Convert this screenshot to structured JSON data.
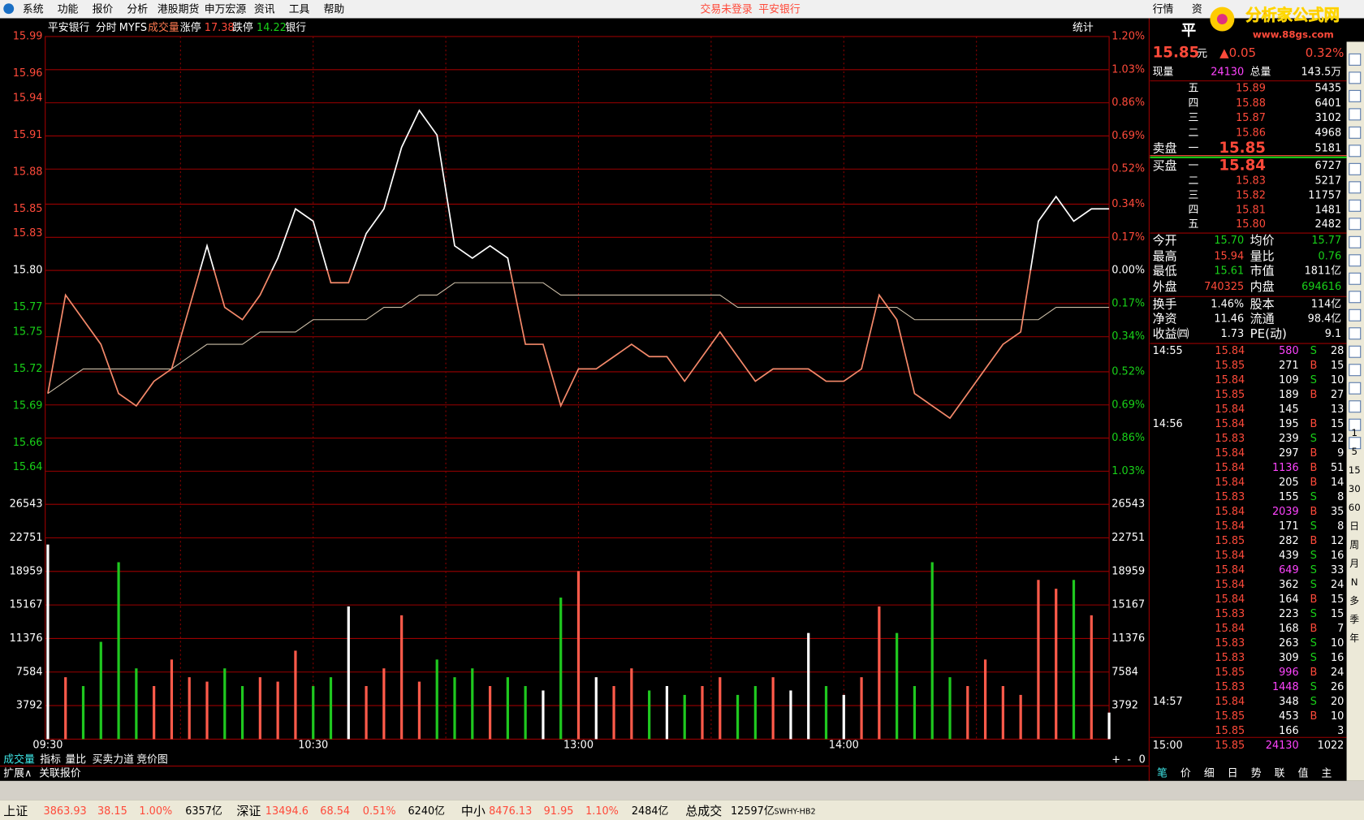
{
  "menu": {
    "items": [
      "系统",
      "功能",
      "报价",
      "分析",
      "港股期货",
      "申万宏源",
      "资讯",
      "工具",
      "帮助"
    ],
    "status": "交易未登录",
    "stock": "平安银行",
    "tabs": [
      "行情",
      "资"
    ]
  },
  "logo": {
    "title": "分析家公式网",
    "url": "www.88gs.com"
  },
  "chart_header": {
    "name": "平安银行",
    "mode": "分时",
    "indicator": "MYFS",
    "volume_label": "成交量",
    "limit_up_label": "涨停",
    "limit_up": "17.38",
    "limit_down_label": "跌停",
    "limit_down": "14.22",
    "sector": "银行",
    "stats_button": "统计"
  },
  "chart_data": [
    {
      "type": "line",
      "x": [
        0,
        4,
        8,
        12,
        16,
        20,
        24,
        28,
        32,
        36,
        40,
        44,
        48,
        52,
        56,
        60,
        64,
        68,
        72,
        76,
        80,
        84,
        88,
        92,
        96,
        100,
        104,
        108,
        112,
        116,
        120,
        124,
        128,
        132,
        136,
        140,
        144,
        148,
        152,
        156,
        160,
        164,
        168,
        172,
        176,
        180,
        184,
        188,
        192,
        196,
        200,
        204,
        208,
        212,
        216,
        220,
        224,
        228,
        232,
        236,
        240
      ],
      "xlim": [
        0,
        240
      ],
      "xticks": [
        {
          "value": 0,
          "label": "09:30"
        },
        {
          "value": 60,
          "label": "10:30"
        },
        {
          "value": 120,
          "label": "13:00"
        },
        {
          "value": 180,
          "label": "14:00"
        }
      ],
      "xgrid": [
        30,
        60,
        90,
        120,
        150,
        180,
        210
      ],
      "ylim": [
        15.61,
        15.99
      ],
      "yticks": [
        15.99,
        15.96,
        15.94,
        15.91,
        15.88,
        15.85,
        15.83,
        {
          "value": 15.8,
          "label": "15.80"
        },
        15.77,
        15.75,
        15.72,
        15.69,
        15.66,
        15.64
      ],
      "y2lim": [
        -1.2,
        1.2
      ],
      "y2ticks": [
        {
          "value": 1.2,
          "label": "1.20%"
        },
        {
          "value": 1.03,
          "label": "1.03%"
        },
        {
          "value": 0.86,
          "label": "0.86%"
        },
        {
          "value": 0.69,
          "label": "0.69%"
        },
        {
          "value": 0.52,
          "label": "0.52%"
        },
        {
          "value": 0.34,
          "label": "0.34%"
        },
        {
          "value": 0.17,
          "label": "0.17%"
        },
        {
          "value": 0,
          "label": "0.00%"
        },
        {
          "value": -0.17,
          "label": "0.17%"
        },
        {
          "value": -0.34,
          "label": "0.34%"
        },
        {
          "value": -0.52,
          "label": "0.52%"
        },
        {
          "value": -0.69,
          "label": "0.69%"
        },
        {
          "value": -0.86,
          "label": "0.86%"
        },
        {
          "value": -1.03,
          "label": "1.03%"
        }
      ],
      "series": [
        {
          "color": "#ffffff",
          "color_below": "#f4896a",
          "values": [
            15.7,
            15.78,
            15.76,
            15.74,
            15.7,
            15.69,
            15.71,
            15.72,
            15.77,
            15.82,
            15.77,
            15.76,
            15.78,
            15.81,
            15.85,
            15.84,
            15.79,
            15.79,
            15.83,
            15.85,
            15.9,
            15.93,
            15.91,
            15.82,
            15.81,
            15.82,
            15.81,
            15.74,
            15.74,
            15.69,
            15.72,
            15.72,
            15.73,
            15.74,
            15.73,
            15.73,
            15.71,
            15.73,
            15.75,
            15.73,
            15.71,
            15.72,
            15.72,
            15.72,
            15.71,
            15.71,
            15.72,
            15.78,
            15.76,
            15.7,
            15.69,
            15.68,
            15.7,
            15.72,
            15.74,
            15.75,
            15.84,
            15.86,
            15.84,
            15.85,
            15.85
          ]
        },
        {
          "color": "#cdbfa8",
          "values": [
            15.7,
            15.71,
            15.72,
            15.72,
            15.72,
            15.72,
            15.72,
            15.72,
            15.73,
            15.74,
            15.74,
            15.74,
            15.75,
            15.75,
            15.75,
            15.76,
            15.76,
            15.76,
            15.76,
            15.77,
            15.77,
            15.78,
            15.78,
            15.79,
            15.79,
            15.79,
            15.79,
            15.79,
            15.79,
            15.78,
            15.78,
            15.78,
            15.78,
            15.78,
            15.78,
            15.78,
            15.78,
            15.78,
            15.78,
            15.77,
            15.77,
            15.77,
            15.77,
            15.77,
            15.77,
            15.77,
            15.77,
            15.77,
            15.77,
            15.76,
            15.76,
            15.76,
            15.76,
            15.76,
            15.76,
            15.76,
            15.76,
            15.77,
            15.77,
            15.77,
            15.77
          ]
        }
      ]
    },
    {
      "type": "bar",
      "ylim": [
        0,
        26543
      ],
      "yticks": [
        3792,
        7584,
        11376,
        15167,
        18959,
        22751,
        26543
      ],
      "colors": {
        "up": "#ff5a4a",
        "down": "#1fc81f",
        "flat": "#ffffff"
      },
      "values": [
        22000,
        7000,
        6000,
        11000,
        20000,
        8000,
        6000,
        9000,
        7000,
        6500,
        8000,
        6000,
        7000,
        6500,
        10000,
        6000,
        7000,
        15000,
        6000,
        8000,
        14000,
        6500,
        9000,
        7000,
        8000,
        6000,
        7000,
        6000,
        5500,
        16000,
        19000,
        7000,
        6000,
        8000,
        5500,
        6000,
        5000,
        6000,
        7000,
        5000,
        6000,
        7000,
        5500,
        12000,
        6000,
        5000,
        7000,
        15000,
        12000,
        6000,
        20000,
        7000,
        6000,
        9000,
        6000,
        5000,
        18000,
        17000,
        18000,
        14000,
        3000
      ]
    }
  ],
  "chart_tabs": [
    "成交量",
    "指标",
    "量比",
    "买卖力道",
    "竞价图"
  ],
  "chart_controls": [
    "+",
    "-",
    "0"
  ],
  "extension_tabs": [
    "扩展∧",
    "关联报价"
  ],
  "quote": {
    "title": "平",
    "price": "15.85",
    "unit": "元",
    "change": "▲0.05",
    "percent": "0.32%",
    "now_label": "现量",
    "now": "24130",
    "total_label": "总量",
    "total": "143.5万"
  },
  "order_book": {
    "sell_label": "卖盘",
    "buy_label": "买盘",
    "sell": [
      {
        "level": "五",
        "price": "15.89",
        "volume": "5435"
      },
      {
        "level": "四",
        "price": "15.88",
        "volume": "6401"
      },
      {
        "level": "三",
        "price": "15.87",
        "volume": "3102"
      },
      {
        "level": "二",
        "price": "15.86",
        "volume": "4968"
      },
      {
        "level": "一",
        "price": "15.85",
        "volume": "5181"
      }
    ],
    "buy": [
      {
        "level": "一",
        "price": "15.84",
        "volume": "6727"
      },
      {
        "level": "二",
        "price": "15.83",
        "volume": "5217"
      },
      {
        "level": "三",
        "price": "15.82",
        "volume": "11757"
      },
      {
        "level": "四",
        "price": "15.81",
        "volume": "1481"
      },
      {
        "level": "五",
        "price": "15.80",
        "volume": "2482"
      }
    ]
  },
  "stats": [
    [
      "今开",
      "15.70",
      "均价",
      "15.77"
    ],
    [
      "最高",
      "15.94",
      "量比",
      "0.76"
    ],
    [
      "最低",
      "15.61",
      "市值",
      "1811亿"
    ],
    [
      "外盘",
      "740325",
      "内盘",
      "694616"
    ],
    [
      "换手",
      "1.46%",
      "股本",
      "114亿"
    ],
    [
      "净资",
      "11.46",
      "流通",
      "98.4亿"
    ],
    [
      "收益㈣",
      "1.73",
      "PE(动)",
      "9.1"
    ]
  ],
  "trades": [
    {
      "time": "14:55",
      "price": "15.84",
      "volume": "580",
      "side": "S",
      "count": "28",
      "highlight": true
    },
    {
      "price": "15.85",
      "volume": "271",
      "side": "B",
      "count": "15"
    },
    {
      "price": "15.84",
      "volume": "109",
      "side": "S",
      "count": "10"
    },
    {
      "price": "15.85",
      "volume": "189",
      "side": "B",
      "count": "27"
    },
    {
      "price": "15.84",
      "volume": "145",
      "count": "13"
    },
    {
      "time": "14:56",
      "price": "15.84",
      "volume": "195",
      "side": "B",
      "count": "15"
    },
    {
      "price": "15.83",
      "volume": "239",
      "side": "S",
      "count": "12"
    },
    {
      "price": "15.84",
      "volume": "297",
      "side": "B",
      "count": "9"
    },
    {
      "price": "15.84",
      "volume": "1136",
      "side": "B",
      "count": "51",
      "highlight": true
    },
    {
      "price": "15.84",
      "volume": "205",
      "side": "B",
      "count": "14"
    },
    {
      "price": "15.83",
      "volume": "155",
      "side": "S",
      "count": "8"
    },
    {
      "price": "15.84",
      "volume": "2039",
      "side": "B",
      "count": "35",
      "highlight": true
    },
    {
      "price": "15.84",
      "volume": "171",
      "side": "S",
      "count": "8"
    },
    {
      "price": "15.85",
      "volume": "282",
      "side": "B",
      "count": "12"
    },
    {
      "price": "15.84",
      "volume": "439",
      "side": "S",
      "count": "16"
    },
    {
      "price": "15.84",
      "volume": "649",
      "side": "S",
      "count": "33",
      "highlight": true
    },
    {
      "price": "15.84",
      "volume": "362",
      "side": "S",
      "count": "24"
    },
    {
      "price": "15.84",
      "volume": "164",
      "side": "B",
      "count": "15"
    },
    {
      "price": "15.83",
      "volume": "223",
      "side": "S",
      "count": "15"
    },
    {
      "price": "15.84",
      "volume": "168",
      "side": "B",
      "count": "7"
    },
    {
      "price": "15.83",
      "volume": "263",
      "side": "S",
      "count": "10"
    },
    {
      "price": "15.83",
      "volume": "309",
      "side": "S",
      "count": "16"
    },
    {
      "price": "15.85",
      "volume": "996",
      "side": "B",
      "count": "24",
      "highlight": true
    },
    {
      "price": "15.83",
      "volume": "1448",
      "side": "S",
      "count": "26",
      "highlight": true
    },
    {
      "time": "14:57",
      "price": "15.84",
      "volume": "348",
      "side": "S",
      "count": "20"
    },
    {
      "price": "15.85",
      "volume": "453",
      "side": "B",
      "count": "10"
    },
    {
      "price": "15.85",
      "volume": "166",
      "count": "3"
    },
    {
      "time": "15:00",
      "price": "15.85",
      "volume": "24130",
      "count": "1022",
      "highlight": true
    }
  ],
  "panel_tabs": [
    "笔",
    "价",
    "细",
    "日",
    "势",
    "联",
    "值",
    "主"
  ],
  "side_toolbar": [
    "1",
    "5",
    "15",
    "30",
    "60",
    "日",
    "周",
    "月",
    "N",
    "多",
    "季",
    "年"
  ],
  "status_bar": [
    "上证",
    "3863.93",
    "38.15",
    "1.00%",
    "6357亿",
    "深证",
    "13494.6",
    "68.54",
    "0.51%",
    "6240亿",
    "中小",
    "8476.13",
    "91.95",
    "1.10%",
    "2484亿",
    "总成交",
    "12597亿",
    "SWHY-HB2"
  ]
}
